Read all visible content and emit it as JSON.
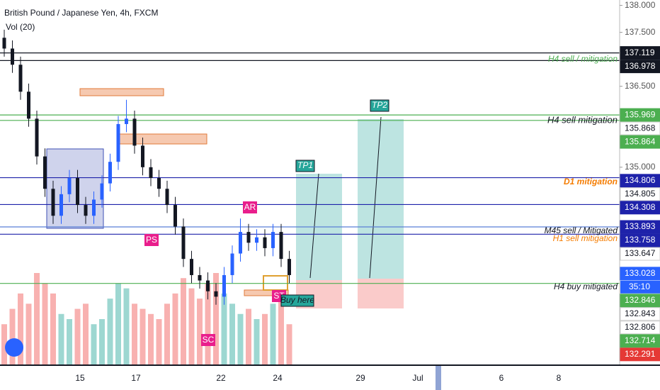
{
  "header": {
    "symbol": "British Pound / Japanese Yen, 4h, FXCM",
    "indicator": "Vol (20)"
  },
  "chart_data": {
    "type": "candlestick",
    "ylim": [
      131.33,
      138.1
    ],
    "open": [
      137.4,
      137.2,
      136.9,
      136.4,
      135.9,
      135.2,
      134.6,
      134.1,
      134.5,
      134.8,
      134.3,
      134.1,
      134.4,
      134.7,
      135.1,
      135.8,
      135.9,
      135.4,
      135.0,
      134.8,
      134.6,
      134.3,
      133.9,
      133.3,
      133.0,
      132.9,
      132.7,
      132.6,
      133.0,
      133.4,
      133.8,
      133.6,
      133.7,
      133.5,
      133.8,
      133.3
    ],
    "high": [
      137.55,
      137.35,
      137.05,
      136.55,
      136.05,
      135.35,
      134.75,
      134.65,
      134.95,
      134.95,
      134.45,
      134.55,
      134.85,
      135.25,
      135.95,
      136.25,
      136.05,
      135.55,
      135.15,
      134.95,
      134.75,
      134.45,
      134.05,
      133.45,
      133.15,
      133.05,
      132.85,
      133.15,
      133.55,
      134.05,
      133.95,
      133.85,
      133.85,
      133.95,
      133.95,
      133.45
    ],
    "low": [
      137.05,
      136.75,
      136.25,
      135.75,
      135.05,
      134.45,
      133.95,
      133.95,
      134.35,
      134.15,
      133.95,
      133.95,
      134.25,
      134.55,
      134.95,
      135.65,
      135.25,
      134.85,
      134.65,
      134.45,
      134.15,
      133.75,
      133.15,
      132.85,
      132.75,
      132.55,
      132.45,
      132.45,
      132.85,
      133.25,
      133.45,
      133.45,
      133.35,
      133.35,
      133.15,
      132.85
    ],
    "close": [
      137.2,
      136.9,
      136.4,
      135.9,
      135.2,
      134.6,
      134.1,
      134.5,
      134.8,
      134.3,
      134.1,
      134.4,
      134.7,
      135.1,
      135.8,
      135.9,
      135.4,
      135.0,
      134.8,
      134.6,
      134.3,
      133.9,
      133.3,
      133.0,
      132.9,
      132.7,
      132.6,
      133.0,
      133.4,
      133.8,
      133.6,
      133.7,
      133.5,
      133.8,
      133.3,
      133.0
    ],
    "volume": [
      40,
      55,
      70,
      60,
      90,
      80,
      70,
      50,
      45,
      55,
      60,
      40,
      45,
      65,
      80,
      75,
      60,
      55,
      50,
      45,
      60,
      70,
      85,
      75,
      65,
      80,
      90,
      70,
      60,
      50,
      55,
      45,
      50,
      60,
      70,
      40
    ],
    "up_color": "#2962ff",
    "down_color": "#131722",
    "levels": [
      {
        "value": 137.119,
        "color": "#131722"
      },
      {
        "value": 136.978,
        "color": "#131722"
      },
      {
        "value": 135.969,
        "color": "#4caf50"
      },
      {
        "value": 135.868,
        "color": "#4caf50"
      },
      {
        "value": 134.806,
        "color": "#1e22aa"
      },
      {
        "value": 134.308,
        "color": "#1e22aa"
      },
      {
        "value": 133.893,
        "color": "#5b7fd6"
      },
      {
        "value": 133.758,
        "color": "#1e22aa"
      },
      {
        "value": 132.846,
        "color": "#4caf50"
      }
    ],
    "price_tags": [
      {
        "value": 138.0,
        "label": "138.000",
        "bg": "none",
        "fg": "#555"
      },
      {
        "value": 137.5,
        "label": "137.500",
        "bg": "none",
        "fg": "#555"
      },
      {
        "value": 137.119,
        "label": "137.119",
        "bg": "#131722",
        "fg": "#fff"
      },
      {
        "value": 136.978,
        "label": "136.978",
        "bg": "#131722",
        "fg": "#fff"
      },
      {
        "value": 136.5,
        "label": "136.500",
        "bg": "none",
        "fg": "#555"
      },
      {
        "value": 135.969,
        "label": "135.969",
        "bg": "#4caf50",
        "fg": "#fff"
      },
      {
        "value": 135.868,
        "label": "135.868",
        "bg": "#fff",
        "fg": "#131722"
      },
      {
        "value": 135.864,
        "label": "135.864",
        "bg": "#4caf50",
        "fg": "#fff"
      },
      {
        "value": 135.0,
        "label": "135.000",
        "bg": "none",
        "fg": "#555"
      },
      {
        "value": 134.806,
        "label": "134.806",
        "bg": "#1e22aa",
        "fg": "#fff"
      },
      {
        "value": 134.805,
        "label": "134.805",
        "bg": "#fff",
        "fg": "#131722"
      },
      {
        "value": 134.308,
        "label": "134.308",
        "bg": "#1e22aa",
        "fg": "#fff"
      },
      {
        "value": 133.893,
        "label": "133.893",
        "bg": "#1e22aa",
        "fg": "#fff"
      },
      {
        "value": 133.758,
        "label": "133.758",
        "bg": "#1e22aa",
        "fg": "#fff"
      },
      {
        "value": 133.647,
        "label": "133.647",
        "bg": "#fff",
        "fg": "#131722"
      },
      {
        "value": 133.028,
        "label": "133.028",
        "bg": "#2962ff",
        "fg": "#fff"
      },
      {
        "value": 132.846,
        "label": "132.846",
        "bg": "#4caf50",
        "fg": "#fff"
      },
      {
        "value": 132.843,
        "label": "132.843",
        "bg": "#fff",
        "fg": "#131722"
      },
      {
        "value": 132.806,
        "label": "132.806",
        "bg": "#fff",
        "fg": "#131722"
      },
      {
        "value": 132.714,
        "label": "132.714",
        "bg": "#4caf50",
        "fg": "#fff"
      },
      {
        "value": 132.291,
        "label": "132.291",
        "bg": "#e53935",
        "fg": "#fff"
      }
    ],
    "countdown": "35:10",
    "dates": [
      "15",
      "17",
      "22",
      "24",
      "29",
      "Jul",
      "6",
      "8"
    ]
  },
  "annotations": {
    "h4_sell_top": "H4 sell / mitigation",
    "h4_sell": "H4 sell mitigation",
    "d1": "D1 mitigation",
    "m45": "M45 sell / Mitigated",
    "h1": "H1 sell mitigation",
    "h4_buy": "H4  buy mitigated",
    "tp1": "TP1",
    "tp2": "TP2",
    "ar": "AR",
    "ps": "PS",
    "sc": "SC",
    "st": "ST",
    "buy": "Buy here"
  }
}
